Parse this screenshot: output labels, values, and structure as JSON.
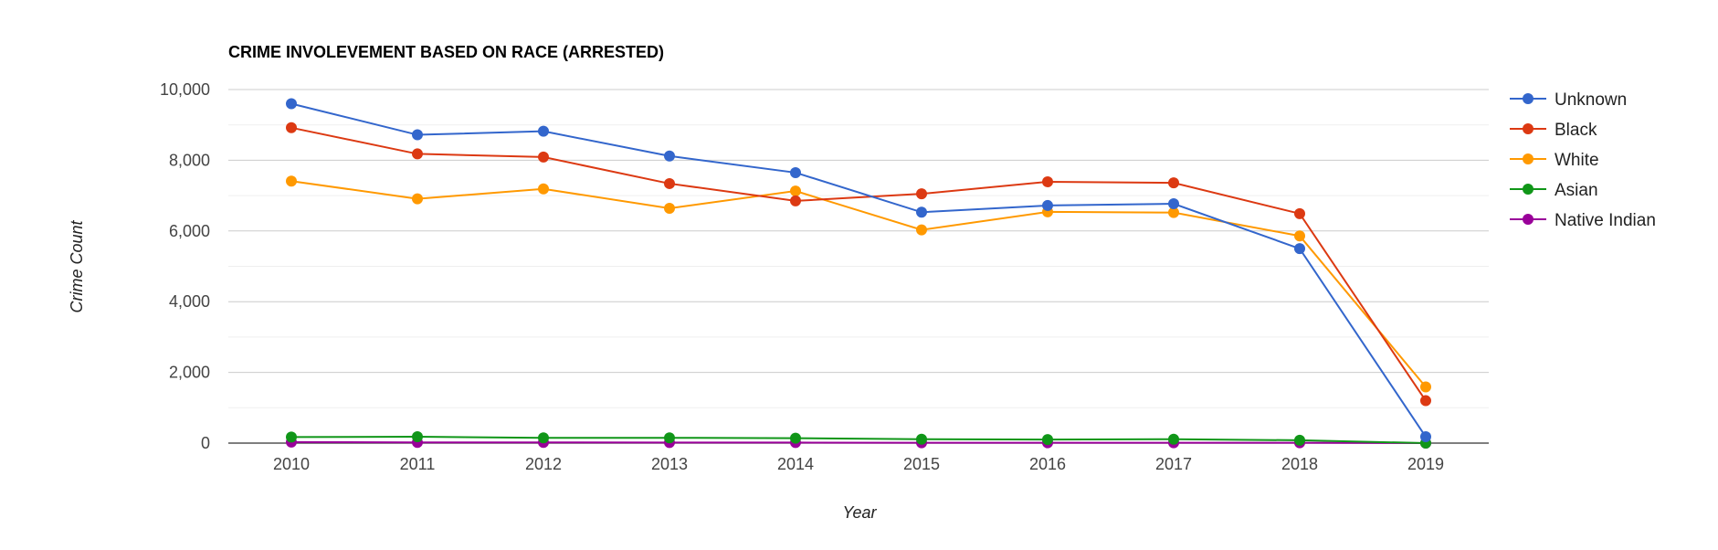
{
  "chart_data": {
    "type": "line",
    "title": "CRIME INVOLEVEMENT BASED ON RACE (ARRESTED)",
    "xlabel": "Year",
    "ylabel": "Crime Count",
    "categories": [
      "2010",
      "2011",
      "2012",
      "2013",
      "2014",
      "2015",
      "2016",
      "2017",
      "2018",
      "2019"
    ],
    "ylim": [
      0,
      10000
    ],
    "yticks": [
      0,
      2000,
      4000,
      6000,
      8000,
      10000
    ],
    "ytick_labels": [
      "0",
      "2,000",
      "4,000",
      "6,000",
      "8,000",
      "10,000"
    ],
    "grid": true,
    "legend_position": "right",
    "series": [
      {
        "name": "Unknown",
        "color": "#3366cc",
        "values": [
          9600,
          8720,
          8820,
          8120,
          7650,
          6530,
          6720,
          6770,
          5500,
          180
        ]
      },
      {
        "name": "Black",
        "color": "#dc3912",
        "values": [
          8920,
          8180,
          8090,
          7340,
          6850,
          7050,
          7390,
          7360,
          6490,
          1200
        ]
      },
      {
        "name": "White",
        "color": "#ff9900",
        "values": [
          7410,
          6910,
          7190,
          6640,
          7130,
          6030,
          6540,
          6520,
          5860,
          1590
        ]
      },
      {
        "name": "Asian",
        "color": "#109618",
        "values": [
          170,
          180,
          150,
          150,
          140,
          110,
          100,
          110,
          80,
          0
        ]
      },
      {
        "name": "Native Indian",
        "color": "#990099",
        "values": [
          30,
          20,
          20,
          15,
          15,
          10,
          10,
          10,
          10,
          0
        ]
      }
    ]
  }
}
